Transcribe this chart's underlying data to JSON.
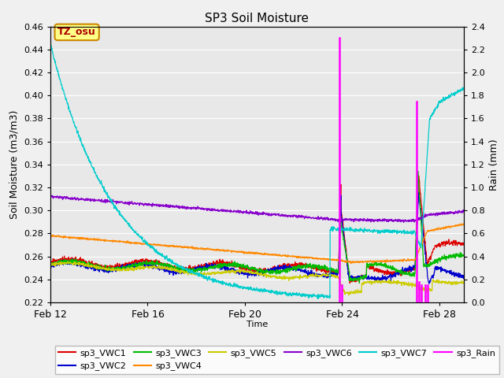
{
  "title": "SP3 Soil Moisture",
  "ylabel_left": "Soil Moisture (m3/m3)",
  "ylabel_right": "Rain (mm)",
  "xlabel": "Time",
  "ylim_left": [
    0.22,
    0.46
  ],
  "ylim_right": [
    0.0,
    2.4
  ],
  "xlim": [
    0,
    17
  ],
  "xtick_positions": [
    0,
    4,
    8,
    12,
    16
  ],
  "xtick_labels": [
    "Feb 12",
    "Feb 16",
    "Feb 20",
    "Feb 24",
    "Feb 28"
  ],
  "ytick_left": [
    0.22,
    0.24,
    0.26,
    0.28,
    0.3,
    0.32,
    0.34,
    0.36,
    0.38,
    0.4,
    0.42,
    0.44,
    0.46
  ],
  "ytick_right": [
    0.0,
    0.2,
    0.4,
    0.6,
    0.8,
    1.0,
    1.2,
    1.4,
    1.6,
    1.8,
    2.0,
    2.2,
    2.4
  ],
  "plot_bg": "#e8e8e8",
  "fig_bg": "#f0f0f0",
  "colors": {
    "VWC1": "#dd0000",
    "VWC2": "#0000cc",
    "VWC3": "#00bb00",
    "VWC4": "#ff8800",
    "VWC5": "#cccc00",
    "VWC6": "#8800cc",
    "VWC7": "#00cccc",
    "Rain": "#ff00ff"
  },
  "tz_label": "TZ_osu",
  "tz_bg": "#ffff88",
  "tz_border": "#cc8800",
  "rain_times": [
    11.88,
    11.97,
    15.05,
    15.15,
    15.25,
    15.42,
    15.52
  ],
  "rain_vals": [
    2.3,
    0.15,
    1.75,
    0.18,
    0.15,
    0.15,
    0.15
  ]
}
